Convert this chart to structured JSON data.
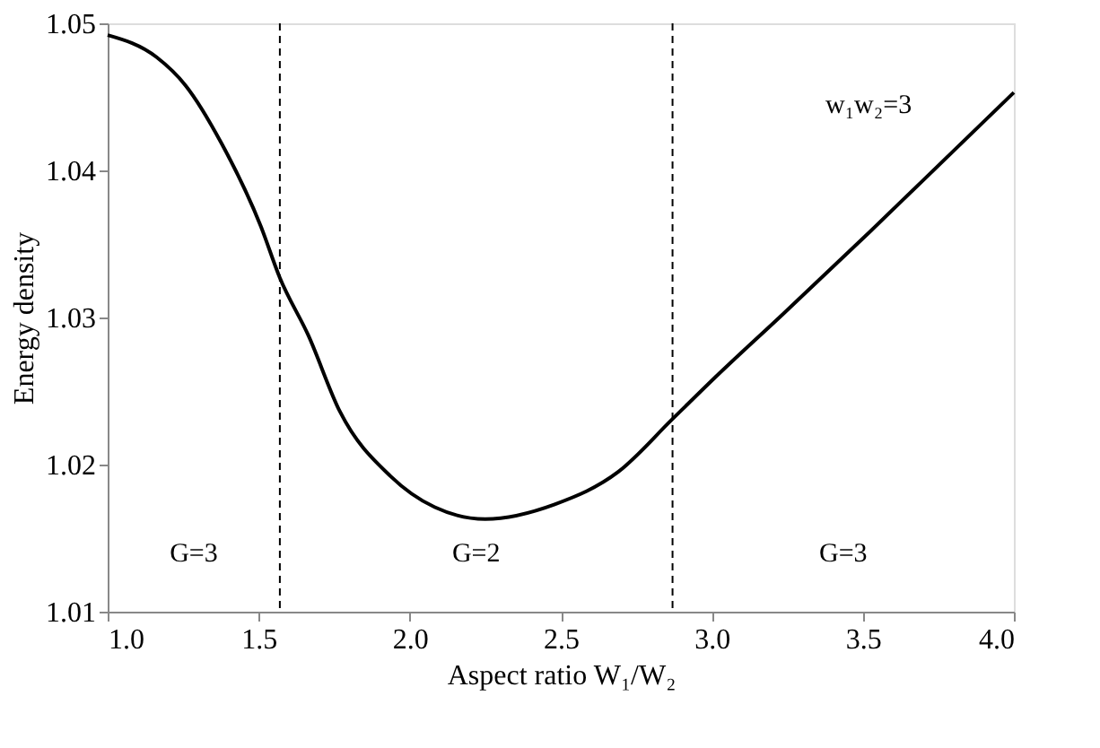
{
  "chart_data": {
    "type": "line",
    "xlabel": "Aspect ratio W₁/W₂",
    "ylabel": "Energy density",
    "x": [
      1.0,
      1.162,
      1.257,
      1.378,
      1.507,
      1.57,
      1.664,
      1.769,
      1.937,
      2.083,
      2.25,
      2.48,
      2.69,
      2.87,
      3.025,
      3.234,
      3.527,
      4.0
    ],
    "series": [
      {
        "color": "#000000",
        "values": [
          1.0492,
          1.0477,
          1.0458,
          1.0418,
          1.0362,
          1.0327,
          1.0288,
          1.0236,
          1.0192,
          1.0171,
          1.0163,
          1.0173,
          1.0195,
          1.0231,
          1.0262,
          1.0302,
          1.0359,
          1.0453
        ]
      }
    ],
    "xlim": [
      1.0,
      4.0
    ],
    "ylim": [
      1.01,
      1.05
    ],
    "xticks": [
      {
        "value": 1,
        "label": "1.0"
      },
      1.5,
      {
        "value": 2,
        "label": "2.0"
      },
      2.5,
      {
        "value": 3,
        "label": "3.0"
      },
      3.5,
      {
        "value": 4,
        "label": "4.0"
      }
    ],
    "yticks": [
      1.01,
      1.02,
      1.03,
      1.04,
      1.05
    ],
    "ref_lines": [
      {
        "axis": "x",
        "value": 1.57,
        "line_style": "dashed",
        "color": "#000000"
      },
      {
        "axis": "x",
        "value": 2.87,
        "line_style": "dashed",
        "color": "#000000"
      }
    ],
    "annotations": [
      "w₁w₂=3",
      "G=3",
      "G=2",
      "G=3"
    ],
    "grid": false,
    "marker": "none",
    "line_style": "solid"
  }
}
